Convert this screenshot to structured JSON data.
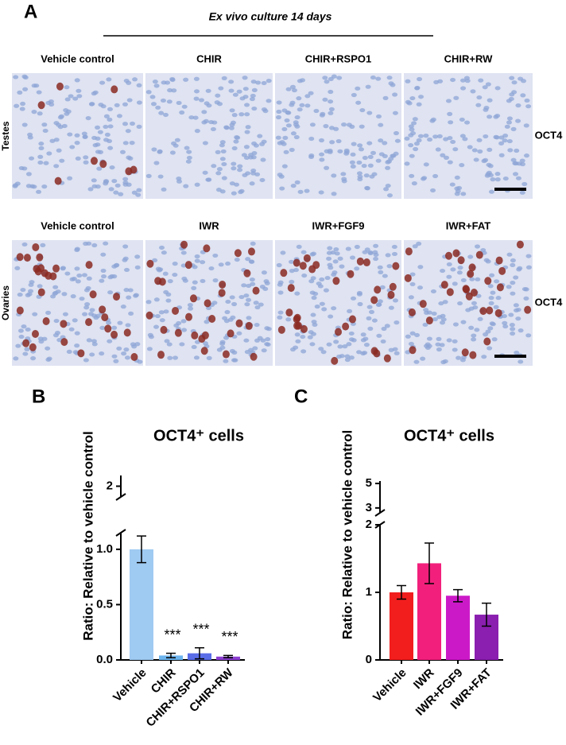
{
  "panel_a": {
    "panel": "A",
    "header": "Ex vivo culture 14 days",
    "rows": [
      {
        "label": "Testes",
        "marker": "OCT4",
        "conditions": [
          "Vehicle control",
          "CHIR",
          "CHIR+RSPO1",
          "CHIR+RW"
        ]
      },
      {
        "label": "Ovaries",
        "marker": "OCT4",
        "conditions": [
          "Vehicle control",
          "IWR",
          "IWR+FGF9",
          "IWR+FAT"
        ]
      }
    ]
  },
  "chart_data": [
    {
      "type": "bar",
      "panel": "B",
      "title": "OCT4⁺ cells",
      "ylabel": "Ratio: Relative to vehicle control",
      "categories": [
        "Vehicle",
        "CHIR",
        "CHIR+RSPO1",
        "CHIR+RW"
      ],
      "values": [
        1.0,
        0.04,
        0.06,
        0.03
      ],
      "errors": [
        0.12,
        0.02,
        0.05,
        0.01
      ],
      "colors": [
        "#9fcaf2",
        "#6cb4ee",
        "#5a6de8",
        "#8c3fd2"
      ],
      "annotations": [
        null,
        "***",
        "***",
        "***"
      ],
      "ylim": [
        0,
        1.15
      ],
      "yticks": [
        {
          "value": 0,
          "label": "0.0"
        },
        0.5,
        {
          "value": 1,
          "label": "1.0"
        }
      ],
      "upper_ylim": [
        1.85,
        2.15
      ],
      "upper_yticks": [
        2
      ]
    },
    {
      "type": "bar",
      "panel": "C",
      "title": "OCT4⁺ cells",
      "ylabel": "Ratio: Relative to vehicle control",
      "categories": [
        "Vehicle",
        "IWR",
        "IWR+FGF9",
        "IWR+FAT"
      ],
      "values": [
        1.0,
        1.43,
        0.95,
        0.67
      ],
      "errors": [
        0.1,
        0.3,
        0.09,
        0.17
      ],
      "colors": [
        "#f21e1e",
        "#f2207c",
        "#cc19c8",
        "#8a1fb0"
      ],
      "annotations": [
        null,
        null,
        null,
        null
      ],
      "ylim": [
        0,
        2
      ],
      "yticks": [
        0,
        1,
        2
      ],
      "upper_ylim": [
        2.6,
        5.2
      ],
      "upper_yticks": [
        3,
        5
      ]
    }
  ]
}
